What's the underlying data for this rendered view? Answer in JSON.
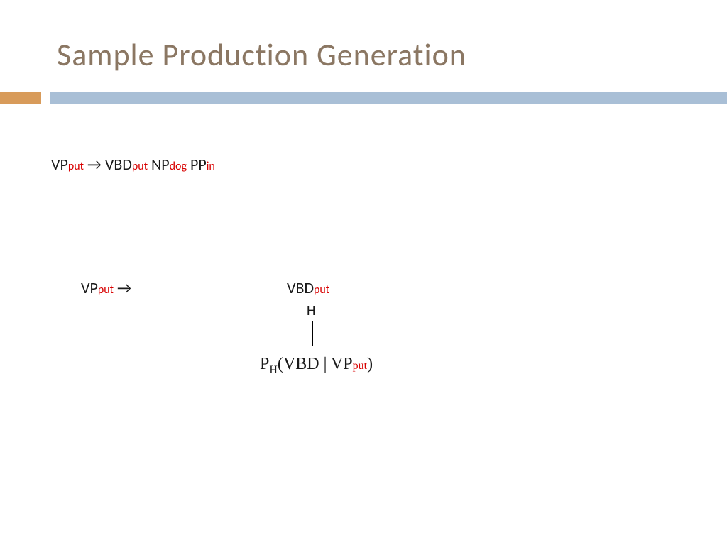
{
  "title": {
    "text": "Sample Production Generation",
    "color": "#8b7763"
  },
  "bars": {
    "orange_width": 58,
    "gap_width": 12,
    "orange_color": "#d89b5a",
    "blue_color": "#a9bfd6"
  },
  "rule1": {
    "vp": "VP",
    "vp_sub": "put",
    "arrow": " → ",
    "vbd": "VBD",
    "vbd_sub": "put",
    "np": " NP",
    "np_sub": "dog",
    "pp": " PP",
    "pp_sub": "in"
  },
  "rule2": {
    "vp": "VP",
    "vp_sub": "put",
    "arrow": " →"
  },
  "vbd2": {
    "text": "VBD",
    "sub": "put"
  },
  "hlabel": "H",
  "prob": {
    "p": "P",
    "h": "H",
    "open": "(",
    "vbd": "VBD",
    "bar": " | ",
    "vp": "VP",
    "vp_sub": "put",
    "close": ")"
  },
  "colors": {
    "black": "#1a1a1a",
    "red": "#d80000",
    "title": "#8b7763"
  }
}
